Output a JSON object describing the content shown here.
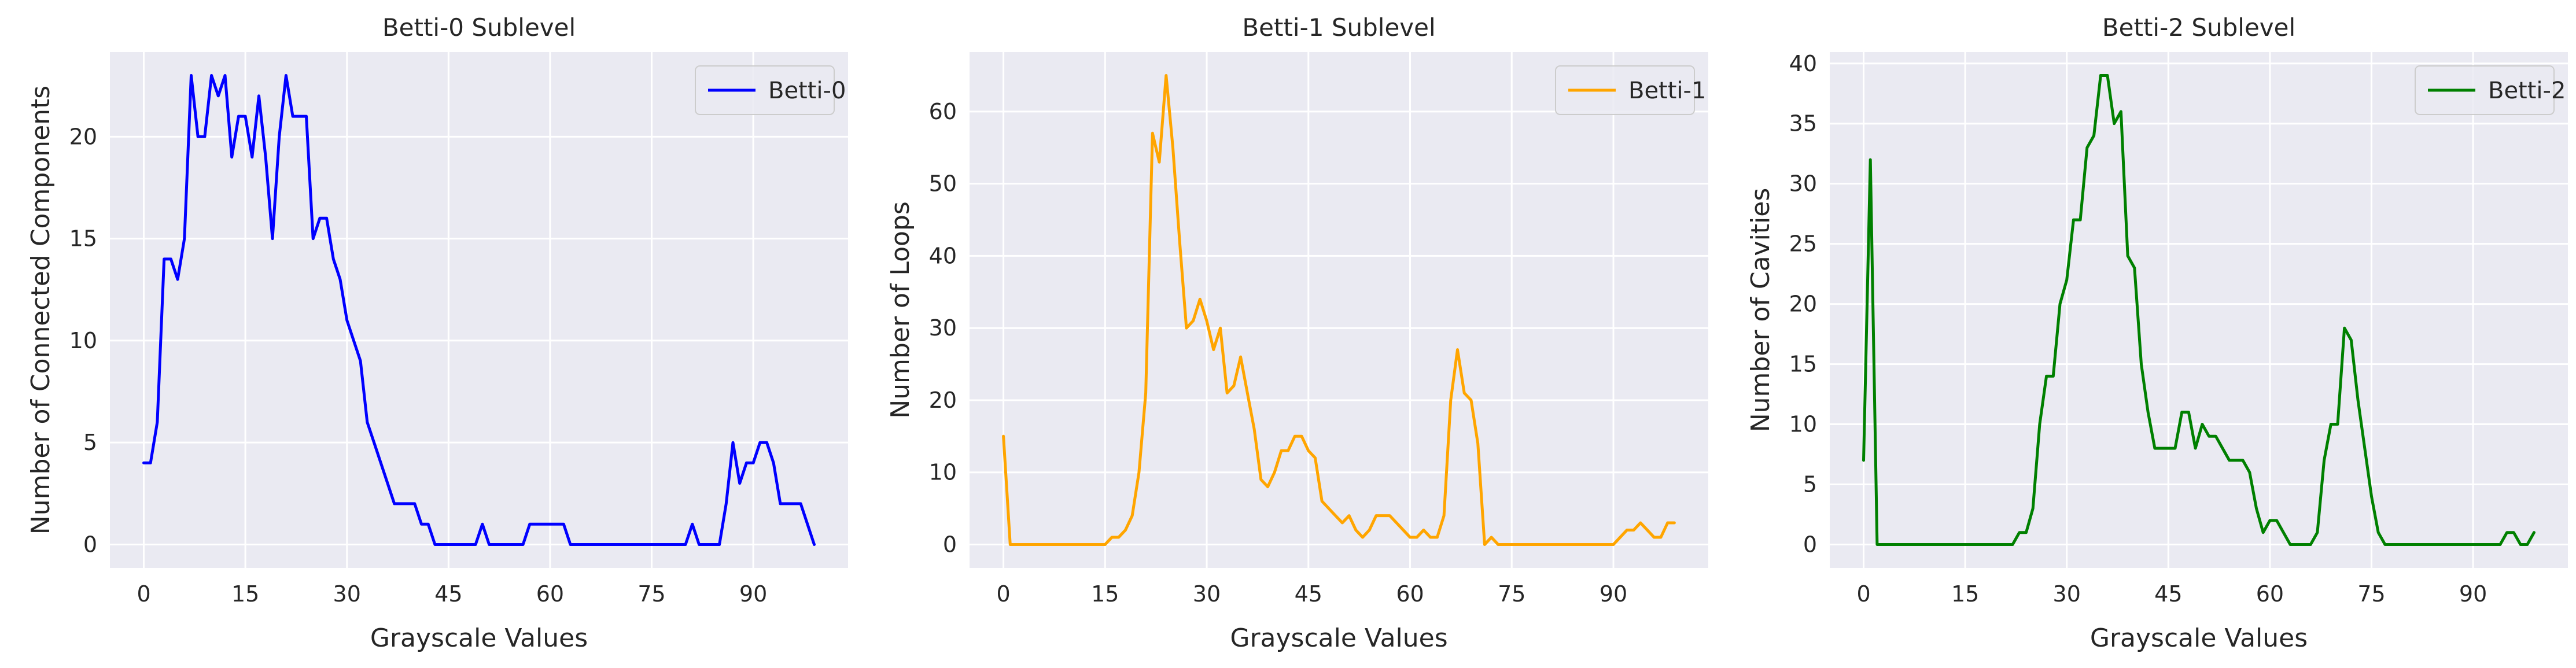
{
  "chart_data": [
    {
      "type": "line",
      "title": "Betti-0 Sublevel",
      "xlabel": "Grayscale Values",
      "ylabel": "Number of Connected Components",
      "xlim": [
        -5,
        104
      ],
      "ylim": [
        -1.15,
        24.15
      ],
      "xticks": [
        0,
        15,
        30,
        45,
        60,
        75,
        90
      ],
      "yticks": [
        0,
        5,
        10,
        15,
        20
      ],
      "grid": true,
      "legend": "upper right",
      "series": [
        {
          "name": "Betti-0",
          "color": "#0000ff",
          "x": [
            0,
            1,
            2,
            3,
            4,
            5,
            6,
            7,
            8,
            9,
            10,
            11,
            12,
            13,
            14,
            15,
            16,
            17,
            18,
            19,
            20,
            21,
            22,
            23,
            24,
            25,
            26,
            27,
            28,
            29,
            30,
            31,
            32,
            33,
            34,
            35,
            36,
            37,
            38,
            39,
            40,
            41,
            42,
            43,
            44,
            45,
            46,
            47,
            48,
            49,
            50,
            51,
            52,
            53,
            54,
            55,
            56,
            57,
            58,
            59,
            60,
            61,
            62,
            63,
            64,
            65,
            66,
            67,
            68,
            69,
            70,
            71,
            72,
            73,
            74,
            75,
            76,
            77,
            78,
            79,
            80,
            81,
            82,
            83,
            84,
            85,
            86,
            87,
            88,
            89,
            90,
            91,
            92,
            93,
            94,
            95,
            96,
            97,
            98,
            99
          ],
          "y": [
            4,
            4,
            6,
            14,
            14,
            13,
            15,
            23,
            20,
            20,
            23,
            22,
            23,
            19,
            21,
            21,
            19,
            22,
            19,
            15,
            20,
            23,
            21,
            21,
            21,
            15,
            16,
            16,
            14,
            13,
            11,
            10,
            9,
            6,
            5,
            4,
            3,
            2,
            2,
            2,
            2,
            1,
            1,
            0,
            0,
            0,
            0,
            0,
            0,
            0,
            1,
            0,
            0,
            0,
            0,
            0,
            0,
            1,
            1,
            1,
            1,
            1,
            1,
            0,
            0,
            0,
            0,
            0,
            0,
            0,
            0,
            0,
            0,
            0,
            0,
            0,
            0,
            0,
            0,
            0,
            0,
            1,
            0,
            0,
            0,
            0,
            2,
            5,
            3,
            4,
            4,
            5,
            5,
            4,
            2,
            2,
            2,
            2,
            1,
            0
          ]
        }
      ]
    },
    {
      "type": "line",
      "title": "Betti-1 Sublevel",
      "xlabel": "Grayscale Values",
      "ylabel": "Number of Loops",
      "xlim": [
        -5,
        104
      ],
      "ylim": [
        -3.25,
        68.25
      ],
      "xticks": [
        0,
        15,
        30,
        45,
        60,
        75,
        90
      ],
      "yticks": [
        0,
        10,
        20,
        30,
        40,
        50,
        60
      ],
      "grid": true,
      "legend": "upper right",
      "series": [
        {
          "name": "Betti-1",
          "color": "#ffa500",
          "x": [
            0,
            1,
            2,
            3,
            4,
            5,
            6,
            7,
            8,
            9,
            10,
            11,
            12,
            13,
            14,
            15,
            16,
            17,
            18,
            19,
            20,
            21,
            22,
            23,
            24,
            25,
            26,
            27,
            28,
            29,
            30,
            31,
            32,
            33,
            34,
            35,
            36,
            37,
            38,
            39,
            40,
            41,
            42,
            43,
            44,
            45,
            46,
            47,
            48,
            49,
            50,
            51,
            52,
            53,
            54,
            55,
            56,
            57,
            58,
            59,
            60,
            61,
            62,
            63,
            64,
            65,
            66,
            67,
            68,
            69,
            70,
            71,
            72,
            73,
            74,
            75,
            76,
            77,
            78,
            79,
            80,
            81,
            82,
            83,
            84,
            85,
            86,
            87,
            88,
            89,
            90,
            91,
            92,
            93,
            94,
            95,
            96,
            97,
            98,
            99
          ],
          "y": [
            15,
            0,
            0,
            0,
            0,
            0,
            0,
            0,
            0,
            0,
            0,
            0,
            0,
            0,
            0,
            0,
            1,
            1,
            2,
            4,
            10,
            21,
            57,
            53,
            65,
            55,
            42,
            30,
            31,
            34,
            31,
            27,
            30,
            21,
            22,
            26,
            21,
            16,
            9,
            8,
            10,
            13,
            13,
            15,
            15,
            13,
            12,
            6,
            5,
            4,
            3,
            4,
            2,
            1,
            2,
            4,
            4,
            4,
            3,
            2,
            1,
            1,
            2,
            1,
            1,
            4,
            20,
            27,
            21,
            20,
            14,
            0,
            1,
            0,
            0,
            0,
            0,
            0,
            0,
            0,
            0,
            0,
            0,
            0,
            0,
            0,
            0,
            0,
            0,
            0,
            0,
            1,
            2,
            2,
            3,
            2,
            1,
            1,
            3,
            3
          ]
        }
      ]
    },
    {
      "type": "line",
      "title": "Betti-2 Sublevel",
      "xlabel": "Grayscale Values",
      "ylabel": "Number of Cavities",
      "xlim": [
        -5,
        104
      ],
      "ylim": [
        -1.95,
        40.95
      ],
      "xticks": [
        0,
        15,
        30,
        45,
        60,
        75,
        90
      ],
      "yticks": [
        0,
        5,
        10,
        15,
        20,
        25,
        30,
        35,
        40
      ],
      "grid": true,
      "legend": "upper right",
      "series": [
        {
          "name": "Betti-2",
          "color": "#008000",
          "x": [
            0,
            1,
            2,
            3,
            4,
            5,
            6,
            7,
            8,
            9,
            10,
            11,
            12,
            13,
            14,
            15,
            16,
            17,
            18,
            19,
            20,
            21,
            22,
            23,
            24,
            25,
            26,
            27,
            28,
            29,
            30,
            31,
            32,
            33,
            34,
            35,
            36,
            37,
            38,
            39,
            40,
            41,
            42,
            43,
            44,
            45,
            46,
            47,
            48,
            49,
            50,
            51,
            52,
            53,
            54,
            55,
            56,
            57,
            58,
            59,
            60,
            61,
            62,
            63,
            64,
            65,
            66,
            67,
            68,
            69,
            70,
            71,
            72,
            73,
            74,
            75,
            76,
            77,
            78,
            79,
            80,
            81,
            82,
            83,
            84,
            85,
            86,
            87,
            88,
            89,
            90,
            91,
            92,
            93,
            94,
            95,
            96,
            97,
            98,
            99
          ],
          "y": [
            7,
            32,
            0,
            0,
            0,
            0,
            0,
            0,
            0,
            0,
            0,
            0,
            0,
            0,
            0,
            0,
            0,
            0,
            0,
            0,
            0,
            0,
            0,
            1,
            1,
            3,
            10,
            14,
            14,
            20,
            22,
            27,
            27,
            33,
            34,
            39,
            39,
            35,
            36,
            24,
            23,
            15,
            11,
            8,
            8,
            8,
            8,
            11,
            11,
            8,
            10,
            9,
            9,
            8,
            7,
            7,
            7,
            6,
            3,
            1,
            2,
            2,
            1,
            0,
            0,
            0,
            0,
            1,
            7,
            10,
            10,
            18,
            17,
            12,
            8,
            4,
            1,
            0,
            0,
            0,
            0,
            0,
            0,
            0,
            0,
            0,
            0,
            0,
            0,
            0,
            0,
            0,
            0,
            0,
            0,
            1,
            1,
            0,
            0,
            1
          ]
        }
      ]
    }
  ]
}
